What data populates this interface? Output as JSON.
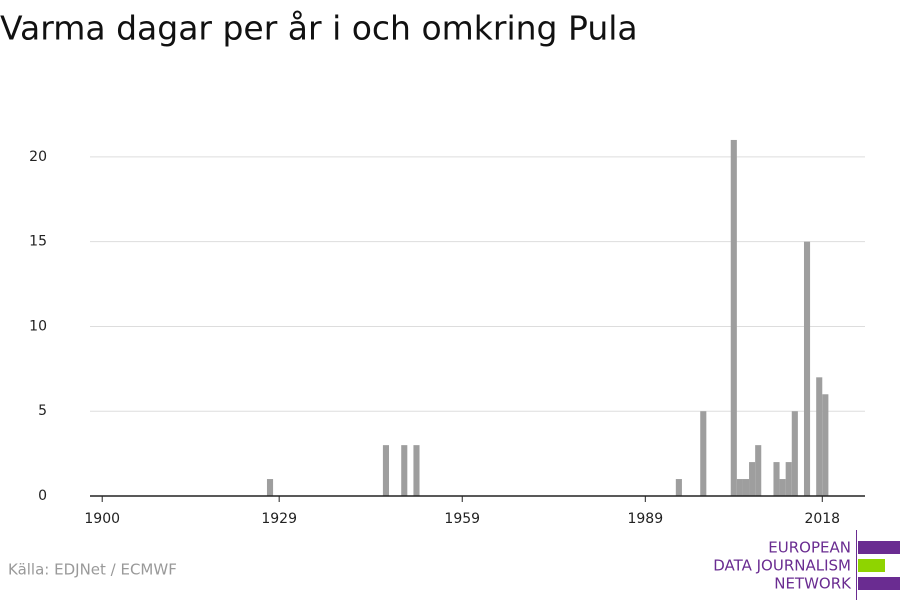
{
  "chart_data": {
    "type": "bar",
    "title": "Varma dagar per år i och omkring Pula",
    "x": [
      1927,
      1946,
      1949,
      1951,
      1994,
      1998,
      2003,
      2004,
      2005,
      2006,
      2007,
      2010,
      2011,
      2012,
      2013,
      2015,
      2017,
      2018
    ],
    "values": [
      1,
      3,
      3,
      3,
      1,
      5,
      21,
      1,
      1,
      2,
      3,
      2,
      1,
      2,
      5,
      15,
      7,
      6
    ],
    "color": "#9e9e9e",
    "xlim": [
      1898,
      2025
    ],
    "xticks": [
      1900,
      1929,
      1959,
      1989,
      2018
    ],
    "ylim": [
      0,
      22
    ],
    "yticks": [
      0,
      5,
      10,
      15,
      20
    ],
    "grid": true,
    "source": "Källa: EDJNet / ECMWF"
  },
  "logo": {
    "lines": [
      "EUROPEAN",
      "DATA JOURNALISM",
      "NETWORK"
    ]
  }
}
